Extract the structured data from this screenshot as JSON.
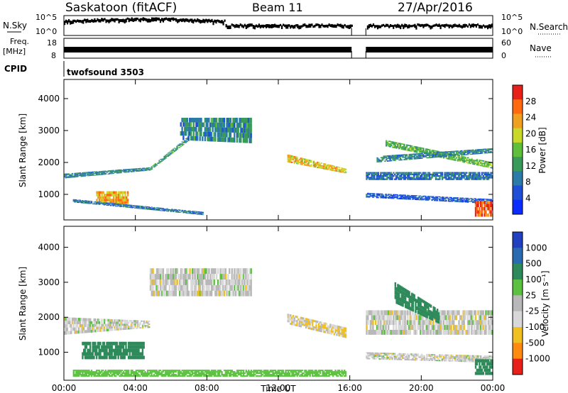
{
  "header": {
    "station": "Saskatoon (fitACF)",
    "beam": "Beam 11",
    "date": "27/Apr/2016"
  },
  "status_panels": {
    "nsky_label": "N.Sky",
    "nsky_ticks": [
      "10^5",
      "10^0"
    ],
    "nsearch_label": "N.Search",
    "nsearch_ticks": [
      "10^5",
      "10^0"
    ],
    "freq_label_line1": "Freq.",
    "freq_label_line2": "[MHz]",
    "freq_ticks": [
      "18",
      "8"
    ],
    "nave_label": "Nave",
    "nave_ticks": [
      "60",
      "0"
    ],
    "cpid_label": "CPID",
    "cpid_value": "twofsound 3503"
  },
  "colors": {
    "power_scale": [
      "#0a2cff",
      "#1f4fd6",
      "#2b7aa8",
      "#3a9a5a",
      "#5fbf3a",
      "#c8d92a",
      "#f0a020",
      "#ff6a10",
      "#e8201a"
    ],
    "velocity_scale": [
      "#2040c0",
      "#2a6ab0",
      "#2e8a5a",
      "#5cc040",
      "#b8b8b8",
      "#d8d8d8",
      "#f0c020",
      "#ff8a10",
      "#e8201a"
    ],
    "axis": "#000000"
  },
  "chart_data": [
    {
      "type": "heatmap",
      "title": "Power",
      "ylabel": "Slant Range [km]",
      "xlabel": "",
      "colorbar_label": "Power [dB]",
      "colorbar_ticks": [
        "4",
        "8",
        "12",
        "16",
        "20",
        "24",
        "28"
      ],
      "x_tick_labels": [
        "00:00",
        "04:00",
        "08:00",
        "12:00",
        "16:00",
        "20:00",
        "00:00"
      ],
      "x_range_hours": [
        0,
        24
      ],
      "y_range_km": [
        200,
        4600
      ],
      "y_ticks": [
        1000,
        2000,
        3000,
        4000
      ],
      "data_gap_hours": [
        16.1,
        16.9
      ],
      "echo_bands": [
        {
          "t_start": 0.0,
          "t_end": 4.8,
          "range_from": 1500,
          "range_to": 1650,
          "range_end_from": 1750,
          "range_end_to": 1850,
          "power_db": 10
        },
        {
          "t_start": 4.8,
          "t_end": 7.0,
          "range_from": 1750,
          "range_to": 1850,
          "range_end_from": 2700,
          "range_end_to": 2850,
          "power_db": 12
        },
        {
          "t_start": 6.5,
          "t_end": 10.5,
          "range_from": 2700,
          "range_to": 3400,
          "range_end_from": 2600,
          "range_end_to": 3400,
          "power_db": 10
        },
        {
          "t_start": 1.8,
          "t_end": 3.6,
          "range_from": 700,
          "range_to": 1100,
          "range_end_from": 700,
          "range_end_to": 1100,
          "power_db": 22
        },
        {
          "t_start": 0.5,
          "t_end": 7.8,
          "range_from": 750,
          "range_to": 850,
          "range_end_from": 350,
          "range_end_to": 450,
          "power_db": 8
        },
        {
          "t_start": 12.5,
          "t_end": 15.8,
          "range_from": 2000,
          "range_to": 2250,
          "range_end_from": 1650,
          "range_end_to": 1800,
          "power_db": 20
        },
        {
          "t_start": 16.9,
          "t_end": 24.0,
          "range_from": 1450,
          "range_to": 1700,
          "range_end_from": 1450,
          "range_end_to": 1700,
          "power_db": 8
        },
        {
          "t_start": 18.0,
          "t_end": 24.0,
          "range_from": 2500,
          "range_to": 2700,
          "range_end_from": 1800,
          "range_end_to": 2000,
          "power_db": 14
        },
        {
          "t_start": 17.5,
          "t_end": 24.0,
          "range_from": 2000,
          "range_to": 2200,
          "range_end_from": 2300,
          "range_end_to": 2450,
          "power_db": 10
        },
        {
          "t_start": 16.9,
          "t_end": 24.0,
          "range_from": 900,
          "range_to": 1050,
          "range_end_from": 700,
          "range_end_to": 850,
          "power_db": 6
        },
        {
          "t_start": 23.0,
          "t_end": 24.0,
          "range_from": 300,
          "range_to": 800,
          "range_end_from": 300,
          "range_end_to": 800,
          "power_db": 26
        }
      ]
    },
    {
      "type": "heatmap",
      "title": "Velocity",
      "ylabel": "Slant Range [km]",
      "xlabel": "Time UT",
      "colorbar_label": "Velocity [m s⁻¹]",
      "colorbar_ticks": [
        "1000",
        "500",
        "100",
        "25",
        "-25",
        "-100",
        "-500",
        "-1000"
      ],
      "x_tick_labels": [
        "00:00",
        "04:00",
        "08:00",
        "12:00",
        "16:00",
        "20:00",
        "00:00"
      ],
      "x_range_hours": [
        0,
        24
      ],
      "y_range_km": [
        200,
        4600
      ],
      "y_ticks": [
        1000,
        2000,
        3000,
        4000
      ],
      "data_gap_hours": [
        16.1,
        16.9
      ],
      "echo_bands": [
        {
          "t_start": 0.0,
          "t_end": 4.8,
          "range_from": 1500,
          "range_to": 2000,
          "range_end_from": 1700,
          "range_end_to": 1900,
          "velocity": 0
        },
        {
          "t_start": 4.8,
          "t_end": 10.5,
          "range_from": 2600,
          "range_to": 3400,
          "range_end_from": 2600,
          "range_end_to": 3400,
          "velocity": 0
        },
        {
          "t_start": 1.0,
          "t_end": 4.5,
          "range_from": 800,
          "range_to": 1300,
          "range_end_from": 800,
          "range_end_to": 1300,
          "velocity": 150
        },
        {
          "t_start": 0.5,
          "t_end": 15.8,
          "range_from": 300,
          "range_to": 500,
          "range_end_from": 300,
          "range_end_to": 500,
          "velocity": 60
        },
        {
          "t_start": 12.5,
          "t_end": 15.8,
          "range_from": 1800,
          "range_to": 2100,
          "range_end_from": 1400,
          "range_end_to": 1700,
          "velocity": -20
        },
        {
          "t_start": 16.9,
          "t_end": 24.0,
          "range_from": 1500,
          "range_to": 2200,
          "range_end_from": 1500,
          "range_end_to": 2200,
          "velocity": 0
        },
        {
          "t_start": 18.5,
          "t_end": 21.0,
          "range_from": 2400,
          "range_to": 3000,
          "range_end_from": 1800,
          "range_end_to": 2200,
          "velocity": 200
        },
        {
          "t_start": 16.9,
          "t_end": 24.0,
          "range_from": 800,
          "range_to": 1000,
          "range_end_from": 700,
          "range_end_to": 900,
          "velocity": 0
        },
        {
          "t_start": 23.0,
          "t_end": 24.0,
          "range_from": 350,
          "range_to": 800,
          "range_end_from": 350,
          "range_end_to": 800,
          "velocity": 150
        }
      ]
    }
  ]
}
